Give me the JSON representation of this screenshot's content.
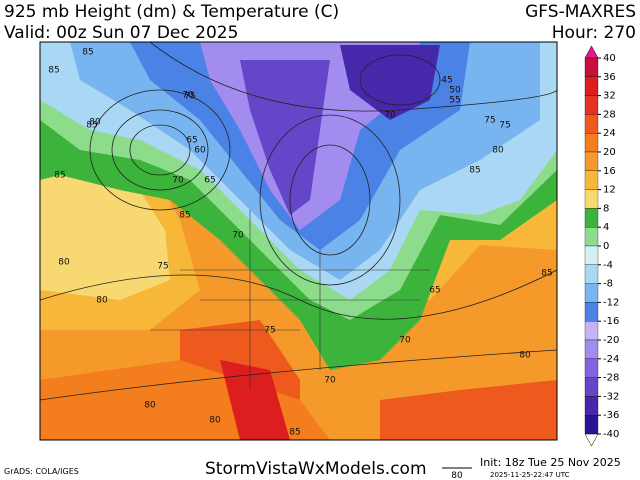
{
  "header": {
    "title": "925 mb Height (dm) & Temperature (C)",
    "valid": "Valid: 00z Sun 07 Dec 2025",
    "model": "GFS-MAXRES",
    "hour": "Hour: 270"
  },
  "map": {
    "contour_labels": [
      "85",
      "85",
      "80",
      "80",
      "75",
      "70",
      "65",
      "60",
      "65",
      "70",
      "85",
      "85",
      "70",
      "80",
      "75",
      "70",
      "65",
      "70",
      "80",
      "85",
      "75",
      "80",
      "80",
      "85",
      "85",
      "75",
      "70",
      "45",
      "50",
      "55",
      "75",
      "80",
      "85"
    ]
  },
  "colorbar": {
    "ticks": [
      40,
      36,
      32,
      28,
      24,
      20,
      16,
      12,
      8,
      4,
      0,
      -4,
      -8,
      -12,
      -16,
      -20,
      -24,
      -28,
      -32,
      -36,
      -40
    ],
    "colors": [
      "#c8103c",
      "#dc1e1e",
      "#e63222",
      "#ee5a1e",
      "#f47d1e",
      "#f59a2a",
      "#f7b83a",
      "#f8d870",
      "#3cb43c",
      "#8cdc8c",
      "#d2f0fa",
      "#aad8f4",
      "#78b4f0",
      "#4a82e6",
      "#c3b4f5",
      "#a28cf0",
      "#8264e1",
      "#6446c8",
      "#4628aa",
      "#281496"
    ],
    "top_color": "#e8188c",
    "bottom_color": "#ffffff"
  },
  "footer": {
    "credit": "GrADS: COLA/IGES",
    "site": "StormVistaWxModels.com",
    "legend_value": "80",
    "init": "Init: 18z Tue 25 Nov 2025",
    "stamp": "2025-11-25-22:47 UTC"
  }
}
